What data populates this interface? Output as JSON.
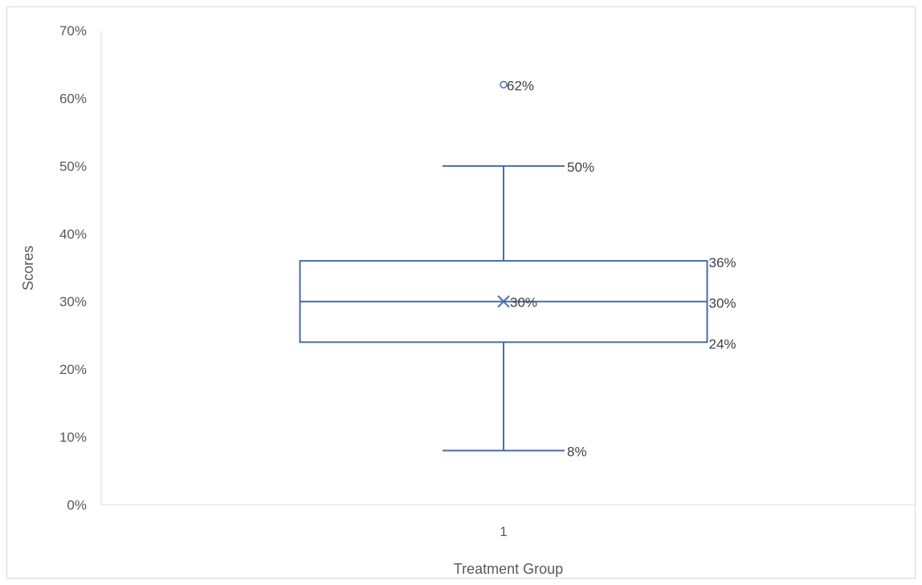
{
  "chart_data": {
    "type": "box",
    "title": "",
    "xlabel": "Treatment Group",
    "ylabel": "Scores",
    "categories": [
      "1"
    ],
    "ylim": [
      0,
      0.7
    ],
    "yticks": [
      0,
      0.1,
      0.2,
      0.3,
      0.4,
      0.5,
      0.6,
      0.7
    ],
    "ytick_labels": [
      "0%",
      "10%",
      "20%",
      "30%",
      "40%",
      "50%",
      "60%",
      "70%"
    ],
    "grid": false,
    "legend": "none",
    "series": [
      {
        "category": "1",
        "min": 0.08,
        "q1": 0.24,
        "median": 0.3,
        "q3": 0.36,
        "max": 0.5,
        "mean": 0.3,
        "outliers": [
          0.62
        ],
        "labels": {
          "min": "8%",
          "q1": "24%",
          "median": "30%",
          "q3": "36%",
          "max": "50%",
          "mean": "30%",
          "outliers": [
            "62%"
          ]
        }
      }
    ],
    "colors": {
      "box": "#4a6ba8",
      "axis": "#d9d9d9",
      "text": "#595959"
    }
  }
}
